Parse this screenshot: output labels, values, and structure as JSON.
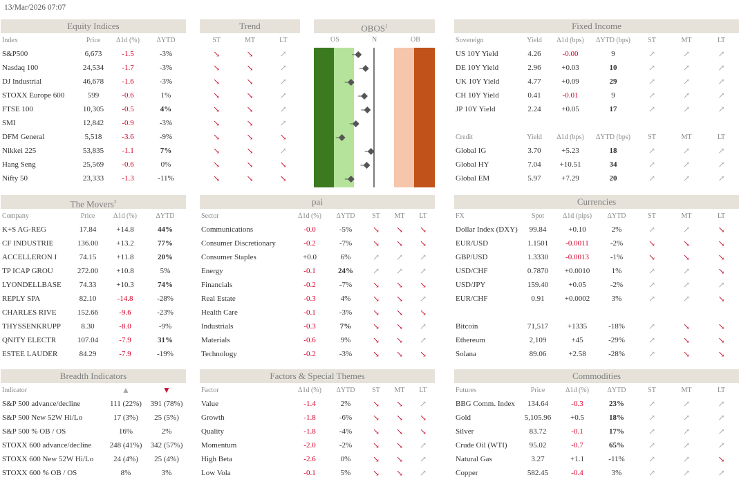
{
  "timestamp": "13/Mar/2026 07:07",
  "equity": {
    "title": "Equity Indices",
    "cols": [
      "Index",
      "Price",
      "Δ1d (%)",
      "ΔYTD"
    ],
    "rows": [
      {
        "name": "S&P500",
        "price": "6,673",
        "d1": "-1.5",
        "ytd": "-3%",
        "neg": true,
        "bold": false
      },
      {
        "name": "Nasdaq 100",
        "price": "24,534",
        "d1": "-1.7",
        "ytd": "-3%",
        "neg": true,
        "bold": false
      },
      {
        "name": "DJ Industrial",
        "price": "46,678",
        "d1": "-1.6",
        "ytd": "-3%",
        "neg": true,
        "bold": false
      },
      {
        "name": "STOXX Europe 600",
        "price": "599",
        "d1": "-0.6",
        "ytd": "1%",
        "neg": true,
        "bold": false
      },
      {
        "name": "FTSE 100",
        "price": "10,305",
        "d1": "-0.5",
        "ytd": "4%",
        "neg": true,
        "bold": true
      },
      {
        "name": "SMI",
        "price": "12,842",
        "d1": "-0.9",
        "ytd": "-3%",
        "neg": true,
        "bold": false
      },
      {
        "name": "DFM General",
        "price": "5,518",
        "d1": "-3.6",
        "ytd": "-9%",
        "neg": true,
        "bold": false
      },
      {
        "name": "Nikkei 225",
        "price": "53,835",
        "d1": "-1.1",
        "ytd": "7%",
        "neg": true,
        "bold": true
      },
      {
        "name": "Hang Seng",
        "price": "25,569",
        "d1": "-0.6",
        "ytd": "0%",
        "neg": true,
        "bold": false
      },
      {
        "name": "Nifty 50",
        "price": "23,333",
        "d1": "-1.3",
        "ytd": "-11%",
        "neg": true,
        "bold": false
      }
    ]
  },
  "trend": {
    "title": "Trend",
    "cols": [
      "ST",
      "MT",
      "LT"
    ],
    "rows": [
      [
        "dn",
        "dn",
        "up"
      ],
      [
        "dn",
        "dn",
        "up"
      ],
      [
        "dn",
        "dn",
        "up"
      ],
      [
        "dn",
        "dn",
        "up"
      ],
      [
        "dn",
        "dn",
        "up"
      ],
      [
        "dn",
        "dn",
        "up"
      ],
      [
        "dn",
        "dn",
        "dn"
      ],
      [
        "dn",
        "dn",
        "up"
      ],
      [
        "dn",
        "dn",
        "dn"
      ],
      [
        "dn",
        "dn",
        "dn"
      ]
    ]
  },
  "obos": {
    "title": "OBOS",
    "sup": "1",
    "cols": [
      "OS",
      "N",
      "OB"
    ],
    "values": [
      0.62,
      0.74,
      0.5,
      0.72,
      0.77,
      0.58,
      0.35,
      0.83,
      0.76,
      0.5
    ]
  },
  "fixed": {
    "title": "Fixed Income",
    "sov_cols": [
      "Sovereign",
      "Yield",
      "Δ1d (bps)",
      "ΔYTD (bps)",
      "ST",
      "MT",
      "LT"
    ],
    "sov": [
      {
        "name": "US 10Y Yield",
        "y": "4.26",
        "d1": "-0.00",
        "ytd": "9",
        "neg": true,
        "bold": false,
        "t": [
          "up",
          "up",
          "up"
        ]
      },
      {
        "name": "DE 10Y Yield",
        "y": "2.96",
        "d1": "+0.03",
        "ytd": "10",
        "neg": false,
        "bold": true,
        "t": [
          "up",
          "up",
          "up"
        ]
      },
      {
        "name": "UK 10Y Yield",
        "y": "4.77",
        "d1": "+0.09",
        "ytd": "29",
        "neg": false,
        "bold": true,
        "t": [
          "up",
          "up",
          "up"
        ]
      },
      {
        "name": "CH 10Y Yield",
        "y": "0.41",
        "d1": "-0.01",
        "ytd": "9",
        "neg": true,
        "bold": false,
        "t": [
          "up",
          "up",
          "up"
        ]
      },
      {
        "name": "JP 10Y Yield",
        "y": "2.24",
        "d1": "+0.05",
        "ytd": "17",
        "neg": false,
        "bold": true,
        "t": [
          "up",
          "up",
          "up"
        ]
      }
    ],
    "cr_cols": [
      "Credit",
      "Yield",
      "Δ1d (bps)",
      "ΔYTD (bps)",
      "ST",
      "MT",
      "LT"
    ],
    "cr": [
      {
        "name": "Global IG",
        "y": "3.70",
        "d1": "+5.23",
        "ytd": "18",
        "neg": false,
        "bold": true,
        "t": [
          "up",
          "up",
          "up"
        ]
      },
      {
        "name": "Global HY",
        "y": "7.04",
        "d1": "+10.51",
        "ytd": "34",
        "neg": false,
        "bold": true,
        "t": [
          "up",
          "up",
          "up"
        ]
      },
      {
        "name": "Global EM",
        "y": "5.97",
        "d1": "+7.29",
        "ytd": "20",
        "neg": false,
        "bold": true,
        "t": [
          "up",
          "up",
          "up"
        ]
      }
    ]
  },
  "movers": {
    "title": "The Movers",
    "sup": "2",
    "cols": [
      "Company",
      "Price",
      "Δ1d (%)",
      "ΔYTD"
    ],
    "rows": [
      {
        "name": "K+S AG-REG",
        "price": "17.84",
        "d1": "+14.8",
        "ytd": "44%",
        "neg": false,
        "bold": true
      },
      {
        "name": "CF INDUSTRIE",
        "price": "136.00",
        "d1": "+13.2",
        "ytd": "77%",
        "neg": false,
        "bold": true
      },
      {
        "name": "ACCELLERON I",
        "price": "74.15",
        "d1": "+11.8",
        "ytd": "20%",
        "neg": false,
        "bold": true
      },
      {
        "name": "TP ICAP GROU",
        "price": "272.00",
        "d1": "+10.8",
        "ytd": "5%",
        "neg": false,
        "bold": false
      },
      {
        "name": "LYONDELLBASE",
        "price": "74.33",
        "d1": "+10.3",
        "ytd": "74%",
        "neg": false,
        "bold": true
      },
      {
        "name": "REPLY SPA",
        "price": "82.10",
        "d1": "-14.8",
        "ytd": "-28%",
        "neg": true,
        "bold": false
      },
      {
        "name": "CHARLES RIVE",
        "price": "152.66",
        "d1": "-9.6",
        "ytd": "-23%",
        "neg": true,
        "bold": false
      },
      {
        "name": "THYSSENKRUPP",
        "price": "8.30",
        "d1": "-8.0",
        "ytd": "-9%",
        "neg": true,
        "bold": false
      },
      {
        "name": "QNITY ELECTR",
        "price": "107.04",
        "d1": "-7.9",
        "ytd": "31%",
        "neg": true,
        "bold": true
      },
      {
        "name": "ESTEE LAUDER",
        "price": "84.29",
        "d1": "-7.9",
        "ytd": "-19%",
        "neg": true,
        "bold": false
      }
    ]
  },
  "pai": {
    "title": "pai",
    "cols": [
      "Sector",
      "Δ1d (%)",
      "ΔYTD",
      "ST",
      "MT",
      "LT"
    ],
    "rows": [
      {
        "name": "Communications",
        "d1": "-0.0",
        "ytd": "-5%",
        "neg": true,
        "bold": false,
        "t": [
          "dn",
          "dn",
          "dn"
        ]
      },
      {
        "name": "Consumer Discretionary",
        "d1": "-0.2",
        "ytd": "-7%",
        "neg": true,
        "bold": false,
        "t": [
          "dn",
          "dn",
          "dn"
        ]
      },
      {
        "name": "Consumer Staples",
        "d1": "+0.0",
        "ytd": "6%",
        "neg": false,
        "bold": false,
        "t": [
          "up",
          "up",
          "up"
        ]
      },
      {
        "name": "Energy",
        "d1": "-0.1",
        "ytd": "24%",
        "neg": true,
        "bold": true,
        "t": [
          "up",
          "up",
          "up"
        ]
      },
      {
        "name": "Financials",
        "d1": "-0.2",
        "ytd": "-7%",
        "neg": true,
        "bold": false,
        "t": [
          "dn",
          "dn",
          "dn"
        ]
      },
      {
        "name": "Real Estate",
        "d1": "-0.3",
        "ytd": "4%",
        "neg": true,
        "bold": false,
        "t": [
          "dn",
          "dn",
          "up"
        ]
      },
      {
        "name": "Health Care",
        "d1": "-0.1",
        "ytd": "-3%",
        "neg": true,
        "bold": false,
        "t": [
          "dn",
          "dn",
          "dn"
        ]
      },
      {
        "name": "Industrials",
        "d1": "-0.3",
        "ytd": "7%",
        "neg": true,
        "bold": true,
        "t": [
          "dn",
          "dn",
          "up"
        ]
      },
      {
        "name": "Materials",
        "d1": "-0.6",
        "ytd": "9%",
        "neg": true,
        "bold": false,
        "t": [
          "dn",
          "dn",
          "up"
        ]
      },
      {
        "name": "Technology",
        "d1": "-0.2",
        "ytd": "-3%",
        "neg": true,
        "bold": false,
        "t": [
          "dn",
          "dn",
          "dn"
        ]
      }
    ]
  },
  "currencies": {
    "title": "Currencies",
    "cols": [
      "FX",
      "Spot",
      "Δ1d (pips)",
      "ΔYTD",
      "ST",
      "MT",
      "LT"
    ],
    "fx": [
      {
        "name": "Dollar Index (DXY)",
        "spot": "99.84",
        "d1": "+0.10",
        "ytd": "2%",
        "neg": false,
        "bold": false,
        "t": [
          "up",
          "up",
          "dn"
        ]
      },
      {
        "name": "EUR/USD",
        "spot": "1.1501",
        "d1": "-0.0011",
        "ytd": "-2%",
        "neg": true,
        "bold": false,
        "t": [
          "dn",
          "dn",
          "dn"
        ]
      },
      {
        "name": "GBP/USD",
        "spot": "1.3330",
        "d1": "-0.0013",
        "ytd": "-1%",
        "neg": true,
        "bold": false,
        "t": [
          "dn",
          "dn",
          "dn"
        ]
      },
      {
        "name": "USD/CHF",
        "spot": "0.7870",
        "d1": "+0.0010",
        "ytd": "1%",
        "neg": false,
        "bold": false,
        "t": [
          "up",
          "up",
          "dn"
        ]
      },
      {
        "name": "USD/JPY",
        "spot": "159.40",
        "d1": "+0.05",
        "ytd": "-2%",
        "neg": false,
        "bold": false,
        "t": [
          "up",
          "up",
          "up"
        ]
      },
      {
        "name": "EUR/CHF",
        "spot": "0.91",
        "d1": "+0.0002",
        "ytd": "3%",
        "neg": false,
        "bold": false,
        "t": [
          "up",
          "up",
          "dn"
        ]
      }
    ],
    "crypto": [
      {
        "name": "Bitcoin",
        "spot": "71,517",
        "d1": "+1335",
        "ytd": "-18%",
        "neg": false,
        "bold": false,
        "t": [
          "up",
          "dn",
          "dn"
        ]
      },
      {
        "name": "Ethereum",
        "spot": "2,109",
        "d1": "+45",
        "ytd": "-29%",
        "neg": false,
        "bold": false,
        "t": [
          "up",
          "dn",
          "dn"
        ]
      },
      {
        "name": "Solana",
        "spot": "89.06",
        "d1": "+2.58",
        "ytd": "-28%",
        "neg": false,
        "bold": false,
        "t": [
          "up",
          "dn",
          "dn"
        ]
      }
    ]
  },
  "breadth": {
    "title": "Breadth Indicators",
    "cols": [
      "Indicator",
      "▲",
      "▼"
    ],
    "rows": [
      {
        "name": "S&P 500 advance/decline",
        "a": "111 (22%)",
        "b": "391 (78%)"
      },
      {
        "name": "S&P 500 New 52W Hi/Lo",
        "a": "17 (3%)",
        "b": "25 (5%)"
      },
      {
        "name": "S&P 500 % OB / OS",
        "a": "16%",
        "b": "2%"
      },
      {
        "name": "STOXX 600 advance/decline",
        "a": "248 (41%)",
        "b": "342 (57%)"
      },
      {
        "name": "STOXX 600 New 52W Hi/Lo",
        "a": "24 (4%)",
        "b": "25 (4%)"
      },
      {
        "name": "STOXX 600 % OB / OS",
        "a": "8%",
        "b": "3%"
      }
    ]
  },
  "factors": {
    "title": "Factors & Special Themes",
    "cols": [
      "Factor",
      "Δ1d (%)",
      "ΔYTD",
      "ST",
      "MT",
      "LT"
    ],
    "rows": [
      {
        "name": "Value",
        "d1": "-1.4",
        "ytd": "2%",
        "neg": true,
        "bold": false,
        "t": [
          "dn",
          "dn",
          "up"
        ]
      },
      {
        "name": "Growth",
        "d1": "-1.8",
        "ytd": "-6%",
        "neg": true,
        "bold": false,
        "t": [
          "dn",
          "dn",
          "dn"
        ]
      },
      {
        "name": "Quality",
        "d1": "-1.8",
        "ytd": "-4%",
        "neg": true,
        "bold": false,
        "t": [
          "dn",
          "dn",
          "dn"
        ]
      },
      {
        "name": "Momentum",
        "d1": "-2.0",
        "ytd": "-2%",
        "neg": true,
        "bold": false,
        "t": [
          "dn",
          "dn",
          "up"
        ]
      },
      {
        "name": "High Beta",
        "d1": "-2.6",
        "ytd": "0%",
        "neg": true,
        "bold": false,
        "t": [
          "dn",
          "dn",
          "up"
        ]
      },
      {
        "name": "Low Vola",
        "d1": "-0.1",
        "ytd": "5%",
        "neg": true,
        "bold": false,
        "t": [
          "dn",
          "dn",
          "up"
        ]
      }
    ]
  },
  "commodities": {
    "title": "Commodities",
    "cols": [
      "Futures",
      "Price",
      "Δ1d (%)",
      "ΔYTD",
      "ST",
      "MT",
      "LT"
    ],
    "rows": [
      {
        "name": "BBG Comm. Index",
        "price": "134.64",
        "d1": "-0.3",
        "ytd": "23%",
        "neg": true,
        "bold": true,
        "t": [
          "up",
          "up",
          "up"
        ]
      },
      {
        "name": "Gold",
        "price": "5,105.96",
        "d1": "+0.5",
        "ytd": "18%",
        "neg": false,
        "bold": true,
        "t": [
          "up",
          "up",
          "up"
        ]
      },
      {
        "name": "Silver",
        "price": "83.72",
        "d1": "-0.1",
        "ytd": "17%",
        "neg": true,
        "bold": true,
        "t": [
          "up",
          "up",
          "up"
        ]
      },
      {
        "name": "Crude Oil (WTI)",
        "price": "95.02",
        "d1": "-0.7",
        "ytd": "65%",
        "neg": true,
        "bold": true,
        "t": [
          "up",
          "up",
          "up"
        ]
      },
      {
        "name": "Natural Gas",
        "price": "3.27",
        "d1": "+1.1",
        "ytd": "-11%",
        "neg": false,
        "bold": false,
        "t": [
          "up",
          "up",
          "dn"
        ]
      },
      {
        "name": "Copper",
        "price": "582.45",
        "d1": "-0.4",
        "ytd": "3%",
        "neg": true,
        "bold": false,
        "t": [
          "up",
          "up",
          "up"
        ]
      }
    ]
  },
  "colors": {
    "header_bg": "#e6e2da",
    "neg": "#d4002a",
    "arrow_down": "#c8102e",
    "arrow_up": "#a7a7a7",
    "os_dark": "#3b7a1e",
    "os_light": "#b5e39b",
    "ob_light": "#f5c6ab",
    "ob_dark": "#c0521a"
  },
  "icons": {
    "down": "trend-down-arrow-icon",
    "up": "trend-up-arrow-icon"
  }
}
